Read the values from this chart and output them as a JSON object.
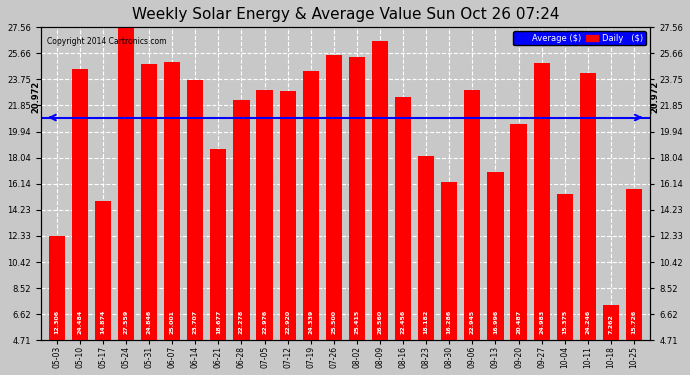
{
  "title": "Weekly Solar Energy & Average Value Sun Oct 26 07:24",
  "copyright": "Copyright 2014 Cartronics.com",
  "categories": [
    "05-03",
    "05-10",
    "05-17",
    "05-24",
    "05-31",
    "06-07",
    "06-14",
    "06-21",
    "06-28",
    "07-05",
    "07-12",
    "07-19",
    "07-26",
    "08-02",
    "08-09",
    "08-16",
    "08-23",
    "08-30",
    "09-06",
    "09-13",
    "09-20",
    "09-27",
    "10-04",
    "10-11",
    "10-18",
    "10-25"
  ],
  "values": [
    12.306,
    24.484,
    14.874,
    27.559,
    24.846,
    25.001,
    23.707,
    18.677,
    22.278,
    22.976,
    22.92,
    24.339,
    25.5,
    25.415,
    26.56,
    22.456,
    18.182,
    16.286,
    22.945,
    16.996,
    20.487,
    24.983,
    15.375,
    24.246,
    7.262,
    15.726
  ],
  "average": 20.972,
  "bar_color": "#ff0000",
  "avg_line_color": "#0000ff",
  "bg_color": "#c8c8c8",
  "plot_bg_color": "#c8c8c8",
  "ylabel_left": "",
  "yticks": [
    4.71,
    6.62,
    8.52,
    10.42,
    12.33,
    14.23,
    16.14,
    18.04,
    19.94,
    21.85,
    23.75,
    25.66,
    27.56
  ],
  "ylim": [
    4.71,
    27.56
  ],
  "legend_avg_color": "#0000ff",
  "legend_daily_color": "#ff0000",
  "avg_label": "Average ($)",
  "daily_label": "Daily   ($)"
}
